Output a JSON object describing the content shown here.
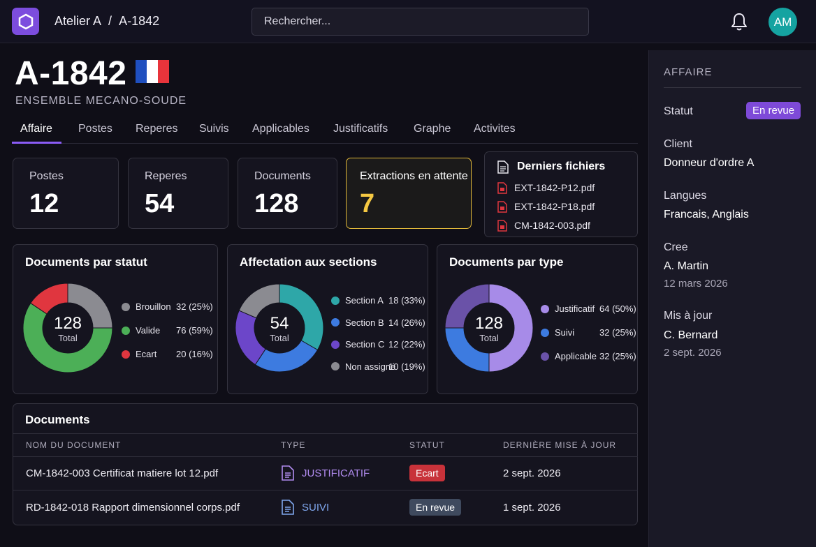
{
  "topbar": {
    "workshop": "Atelier A",
    "separator": "/",
    "reference": "A-1842",
    "search_placeholder": "Rechercher...",
    "avatar_initials": "AM"
  },
  "header": {
    "title": "A-1842",
    "subtitle": "ENSEMBLE MECANO-SOUDE",
    "flag_colors": [
      "#1f4fbf",
      "#ffffff",
      "#e8343b"
    ]
  },
  "tabs": [
    {
      "label": "Affaire",
      "active": true
    },
    {
      "label": "Postes"
    },
    {
      "label": "Reperes"
    },
    {
      "label": "Suivis"
    },
    {
      "label": "Applicables"
    },
    {
      "label": "Justificatifs"
    },
    {
      "label": "Graphe"
    },
    {
      "label": "Activites"
    }
  ],
  "stats": [
    {
      "label": "Postes",
      "value": "12"
    },
    {
      "label": "Reperes",
      "value": "54"
    },
    {
      "label": "Documents",
      "value": "128"
    },
    {
      "label": "Extractions en attente",
      "value": "7"
    }
  ],
  "recent_files": {
    "title": "Derniers fichiers",
    "files": [
      "EXT-1842-P12.pdf",
      "EXT-1842-P18.pdf",
      "CM-1842-003.pdf"
    ]
  },
  "chart_data": [
    {
      "type": "pie",
      "title": "Documents par statut",
      "center_value": "128",
      "center_label": "Total",
      "slices": [
        {
          "name": "Brouillon",
          "value": 32,
          "pct": "(25%)",
          "color": "#8b8b91"
        },
        {
          "name": "Valide",
          "value": 76,
          "pct": "(59%)",
          "color": "#4caf57"
        },
        {
          "name": "Ecart",
          "value": 20,
          "pct": "(16%)",
          "color": "#e0363f"
        }
      ]
    },
    {
      "type": "pie",
      "title": "Affectation aux sections",
      "center_value": "54",
      "center_label": "Total",
      "slices": [
        {
          "name": "Section A",
          "value": 18,
          "pct": "(33%)",
          "color": "#2ea7a8"
        },
        {
          "name": "Section B",
          "value": 14,
          "pct": "(26%)",
          "color": "#3d7be0"
        },
        {
          "name": "Section C",
          "value": 12,
          "pct": "(22%)",
          "color": "#6c46c9"
        },
        {
          "name": "Non assigné",
          "value": 10,
          "pct": "(19%)",
          "color": "#8b8b91"
        }
      ]
    },
    {
      "type": "pie",
      "title": "Documents par type",
      "center_value": "128",
      "center_label": "Total",
      "slices": [
        {
          "name": "Justificatif",
          "value": 64,
          "pct": "(50%)",
          "color": "#a78be8"
        },
        {
          "name": "Suivi",
          "value": 32,
          "pct": "(25%)",
          "color": "#3d7be0"
        },
        {
          "name": "Applicable",
          "value": 32,
          "pct": "(25%)",
          "color": "#6a52a8"
        }
      ]
    }
  ],
  "documents": {
    "title": "Documents",
    "columns": [
      "NOM DU DOCUMENT",
      "TYPE",
      "STATUT",
      "DERNIÈRE MISE À JOUR"
    ],
    "rows": [
      {
        "name": "CM-1842-003 Certificat matiere lot 12.pdf",
        "type": "JUSTIFICATIF",
        "type_color": "#b18cf0",
        "status": "Ecart",
        "status_color": "#c8323a",
        "date": "2 sept. 2026"
      },
      {
        "name": "RD-1842-018  Rapport dimensionnel corps.pdf",
        "type": "SUIVI",
        "type_color": "#7fa7ee",
        "status": "En revue",
        "status_color": "#3f4a5e",
        "date": "1 sept. 2026"
      }
    ]
  },
  "panel": {
    "heading": "AFFAIRE",
    "status_label": "Statut",
    "status_value": "En revue",
    "client_label": "Client",
    "client_value": "Donneur d'ordre A",
    "languages_label": "Langues",
    "languages_value": "Francais, Anglais",
    "created_label": "Cree",
    "created_by": "A. Martin",
    "created_date": "12 mars 2026",
    "updated_label": "Mis à jour",
    "updated_by": "C. Bernard",
    "updated_date": "2 sept. 2026"
  }
}
